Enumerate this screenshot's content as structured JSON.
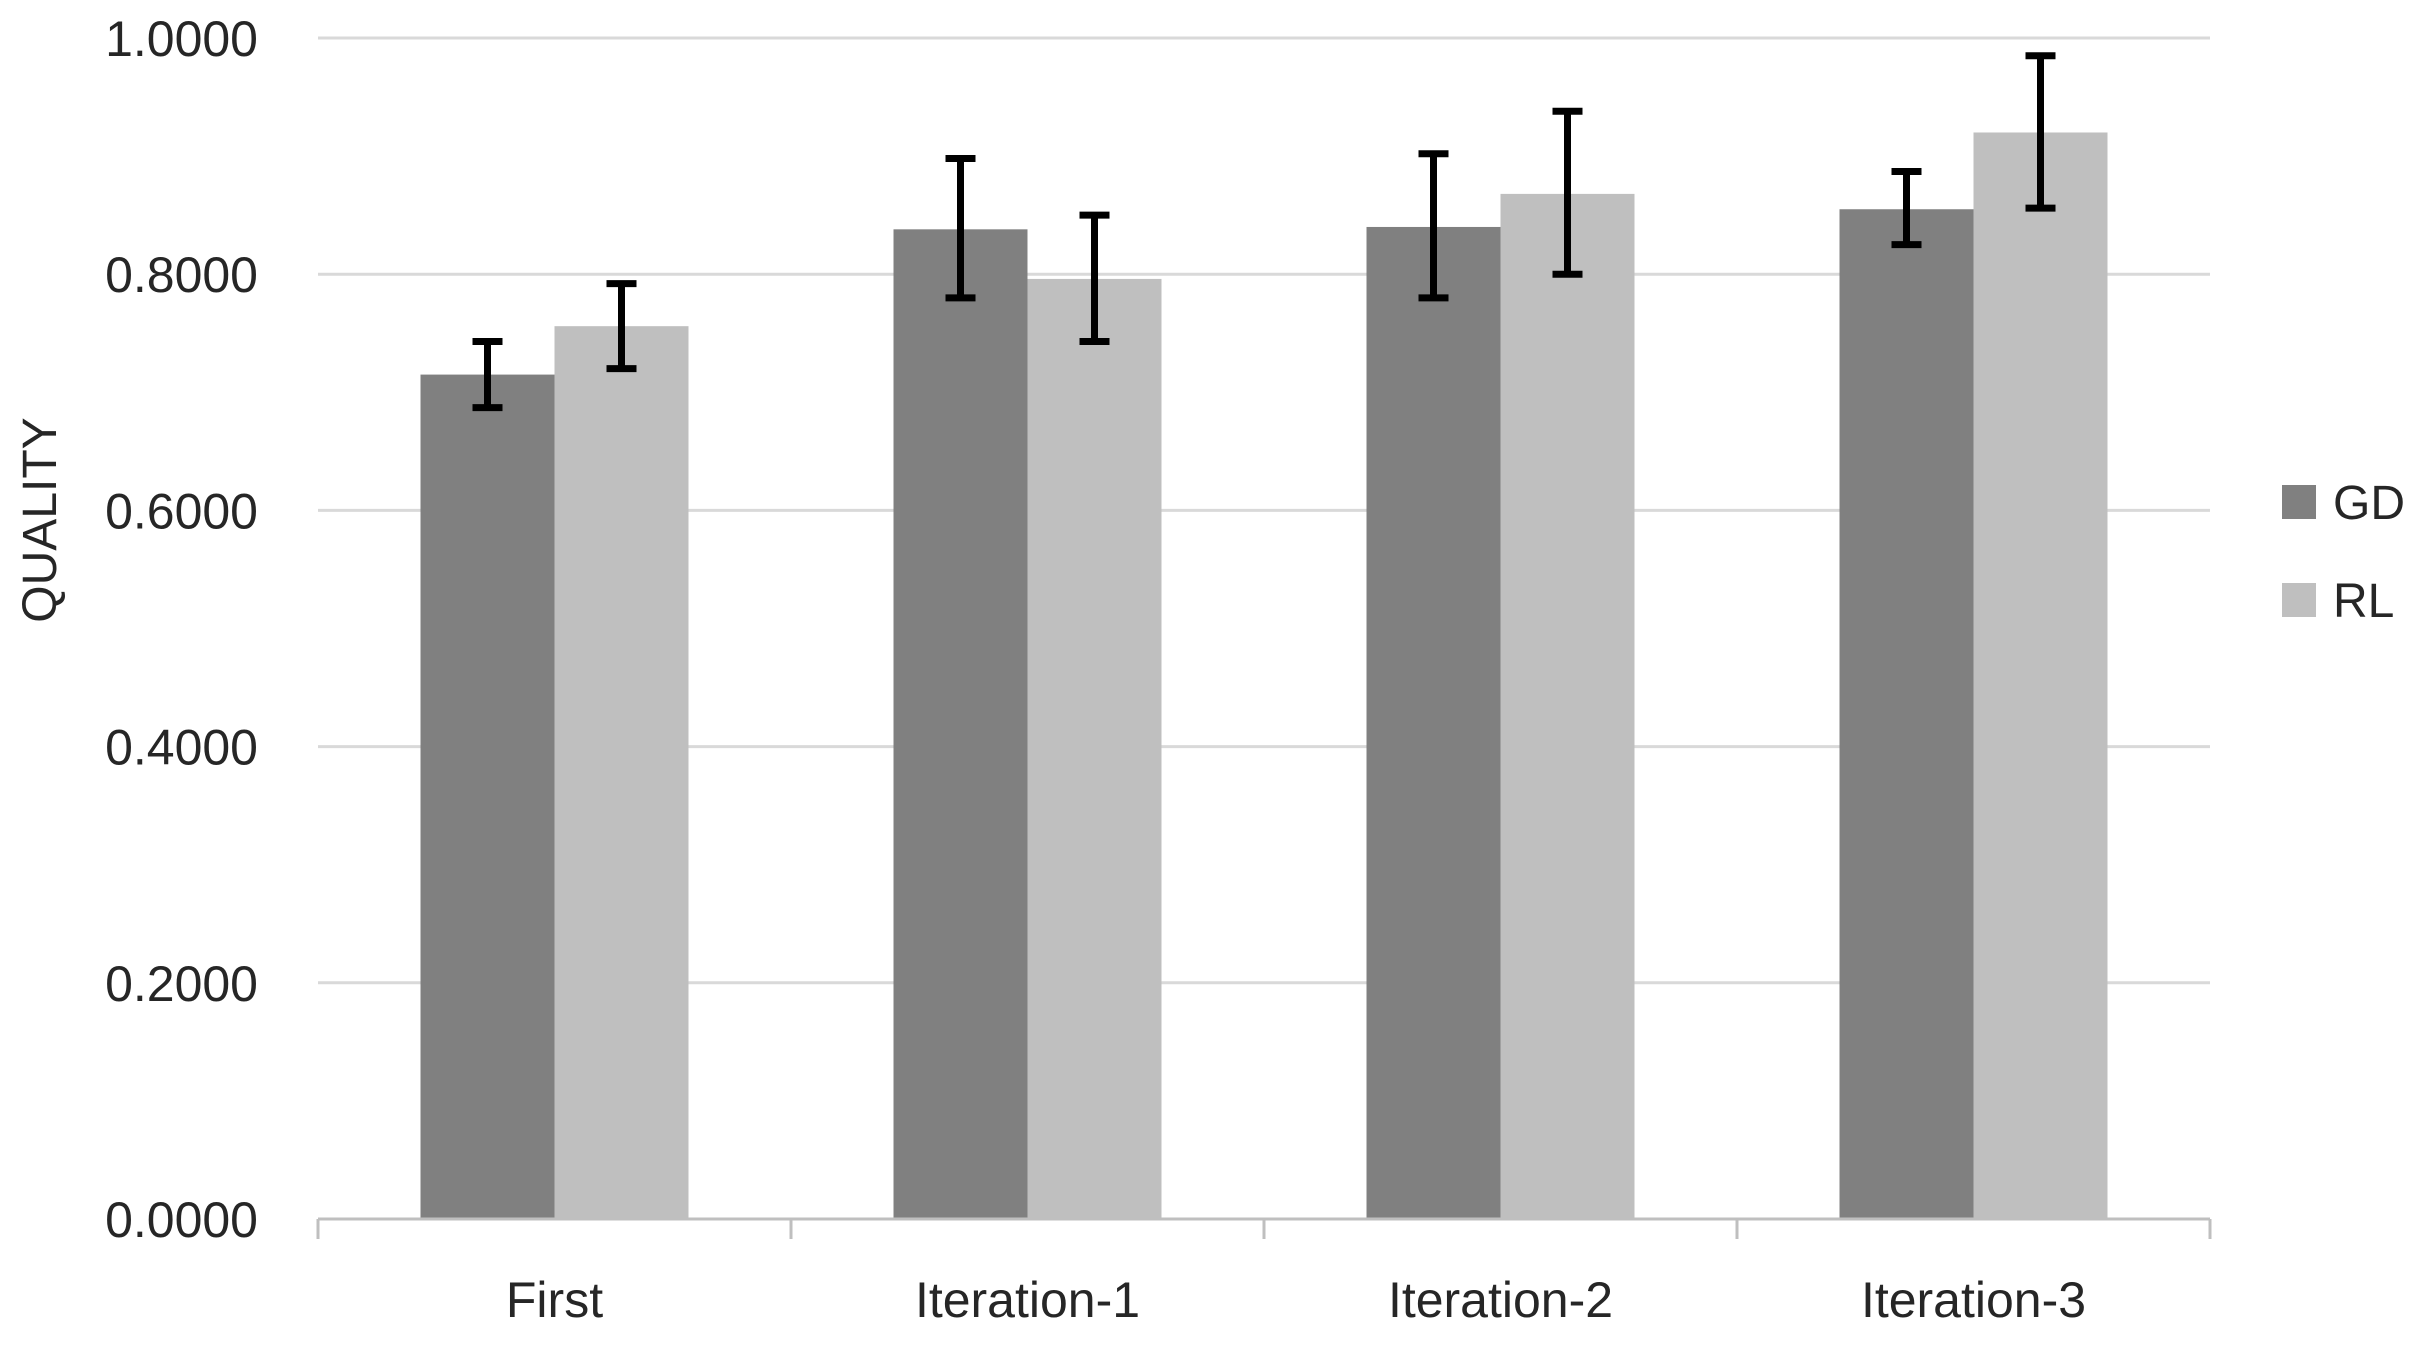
{
  "chart_data": {
    "type": "bar",
    "title": "",
    "xlabel": "",
    "ylabel": "QUALITY",
    "ylim": [
      0,
      1
    ],
    "yticks": [
      "0.0000",
      "0.2000",
      "0.4000",
      "0.6000",
      "0.8000",
      "1.0000"
    ],
    "ytick_values": [
      0,
      0.2,
      0.4,
      0.6,
      0.8,
      1.0
    ],
    "grid": true,
    "legend_position": "right",
    "categories": [
      "First",
      "Iteration-1",
      "Iteration-2",
      "Iteration-3"
    ],
    "series": [
      {
        "name": "GD",
        "color": "#808080",
        "values": [
          0.715,
          0.838,
          0.84,
          0.855
        ],
        "error_low": [
          0.687,
          0.78,
          0.78,
          0.825
        ],
        "error_high": [
          0.743,
          0.898,
          0.902,
          0.887
        ]
      },
      {
        "name": "RL",
        "color": "#bfbfbf",
        "values": [
          0.756,
          0.796,
          0.868,
          0.92
        ],
        "error_low": [
          0.72,
          0.743,
          0.8,
          0.856
        ],
        "error_high": [
          0.792,
          0.85,
          0.938,
          0.985
        ]
      }
    ]
  },
  "colors": {
    "gridline": "#d9d9d9",
    "axis": "#bfbfbf",
    "error_bar": "#000000",
    "text": "#262626"
  }
}
